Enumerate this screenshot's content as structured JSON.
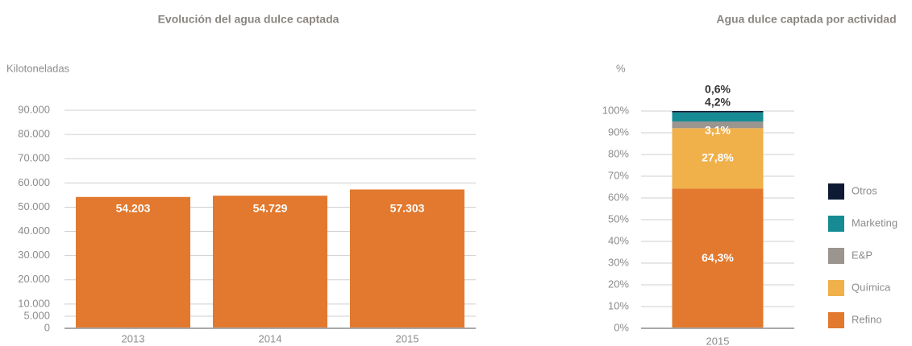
{
  "chart_data": [
    {
      "type": "bar",
      "title": "Evolución del agua dulce captada",
      "y_label": "Kilotoneladas",
      "categories": [
        "2013",
        "2014",
        "2015"
      ],
      "values": [
        54203,
        54729,
        57303
      ],
      "value_labels": [
        "54.203",
        "54.729",
        "57.303"
      ],
      "color": "#e2792e",
      "ylim": [
        0,
        90000
      ],
      "yticks": [
        {
          "value": 0,
          "label": "0"
        },
        {
          "value": 5000,
          "label": "5.000"
        },
        {
          "value": 10000,
          "label": "10.000"
        },
        {
          "value": 20000,
          "label": "20.000"
        },
        {
          "value": 30000,
          "label": "30.000"
        },
        {
          "value": 40000,
          "label": "40.000"
        },
        {
          "value": 50000,
          "label": "50.000"
        },
        {
          "value": 60000,
          "label": "60.000"
        },
        {
          "value": 70000,
          "label": "70.000"
        },
        {
          "value": 80000,
          "label": "80.000"
        },
        {
          "value": 90000,
          "label": "90.000"
        }
      ],
      "grid": true
    },
    {
      "type": "stacked_bar",
      "title": "Agua dulce captada por actividad",
      "y_label": "%",
      "categories": [
        "2015"
      ],
      "series": [
        {
          "name": "Refino",
          "color": "#e2792e",
          "values": [
            64.3
          ],
          "value_labels": [
            "64,3%"
          ]
        },
        {
          "name": "Química",
          "color": "#f0b04a",
          "values": [
            27.8
          ],
          "value_labels": [
            "27,8%"
          ]
        },
        {
          "name": "E&P",
          "color": "#9a958f",
          "values": [
            3.1
          ],
          "value_labels": [
            "3,1%"
          ]
        },
        {
          "name": "Marketing",
          "color": "#168b93",
          "values": [
            4.2
          ],
          "value_labels": [
            "4,2%"
          ]
        },
        {
          "name": "Otros",
          "color": "#0e1a33",
          "values": [
            0.6
          ],
          "value_labels": [
            "0,6%"
          ]
        }
      ],
      "ylim": [
        0,
        100
      ],
      "yticks": [
        {
          "value": 0,
          "label": "0%"
        },
        {
          "value": 10,
          "label": "10%"
        },
        {
          "value": 20,
          "label": "20%"
        },
        {
          "value": 30,
          "label": "30%"
        },
        {
          "value": 40,
          "label": "40%"
        },
        {
          "value": 50,
          "label": "50%"
        },
        {
          "value": 60,
          "label": "60%"
        },
        {
          "value": 70,
          "label": "70%"
        },
        {
          "value": 80,
          "label": "80%"
        },
        {
          "value": 90,
          "label": "90%"
        },
        {
          "value": 100,
          "label": "100%"
        }
      ],
      "grid": true,
      "legend": "right"
    }
  ]
}
